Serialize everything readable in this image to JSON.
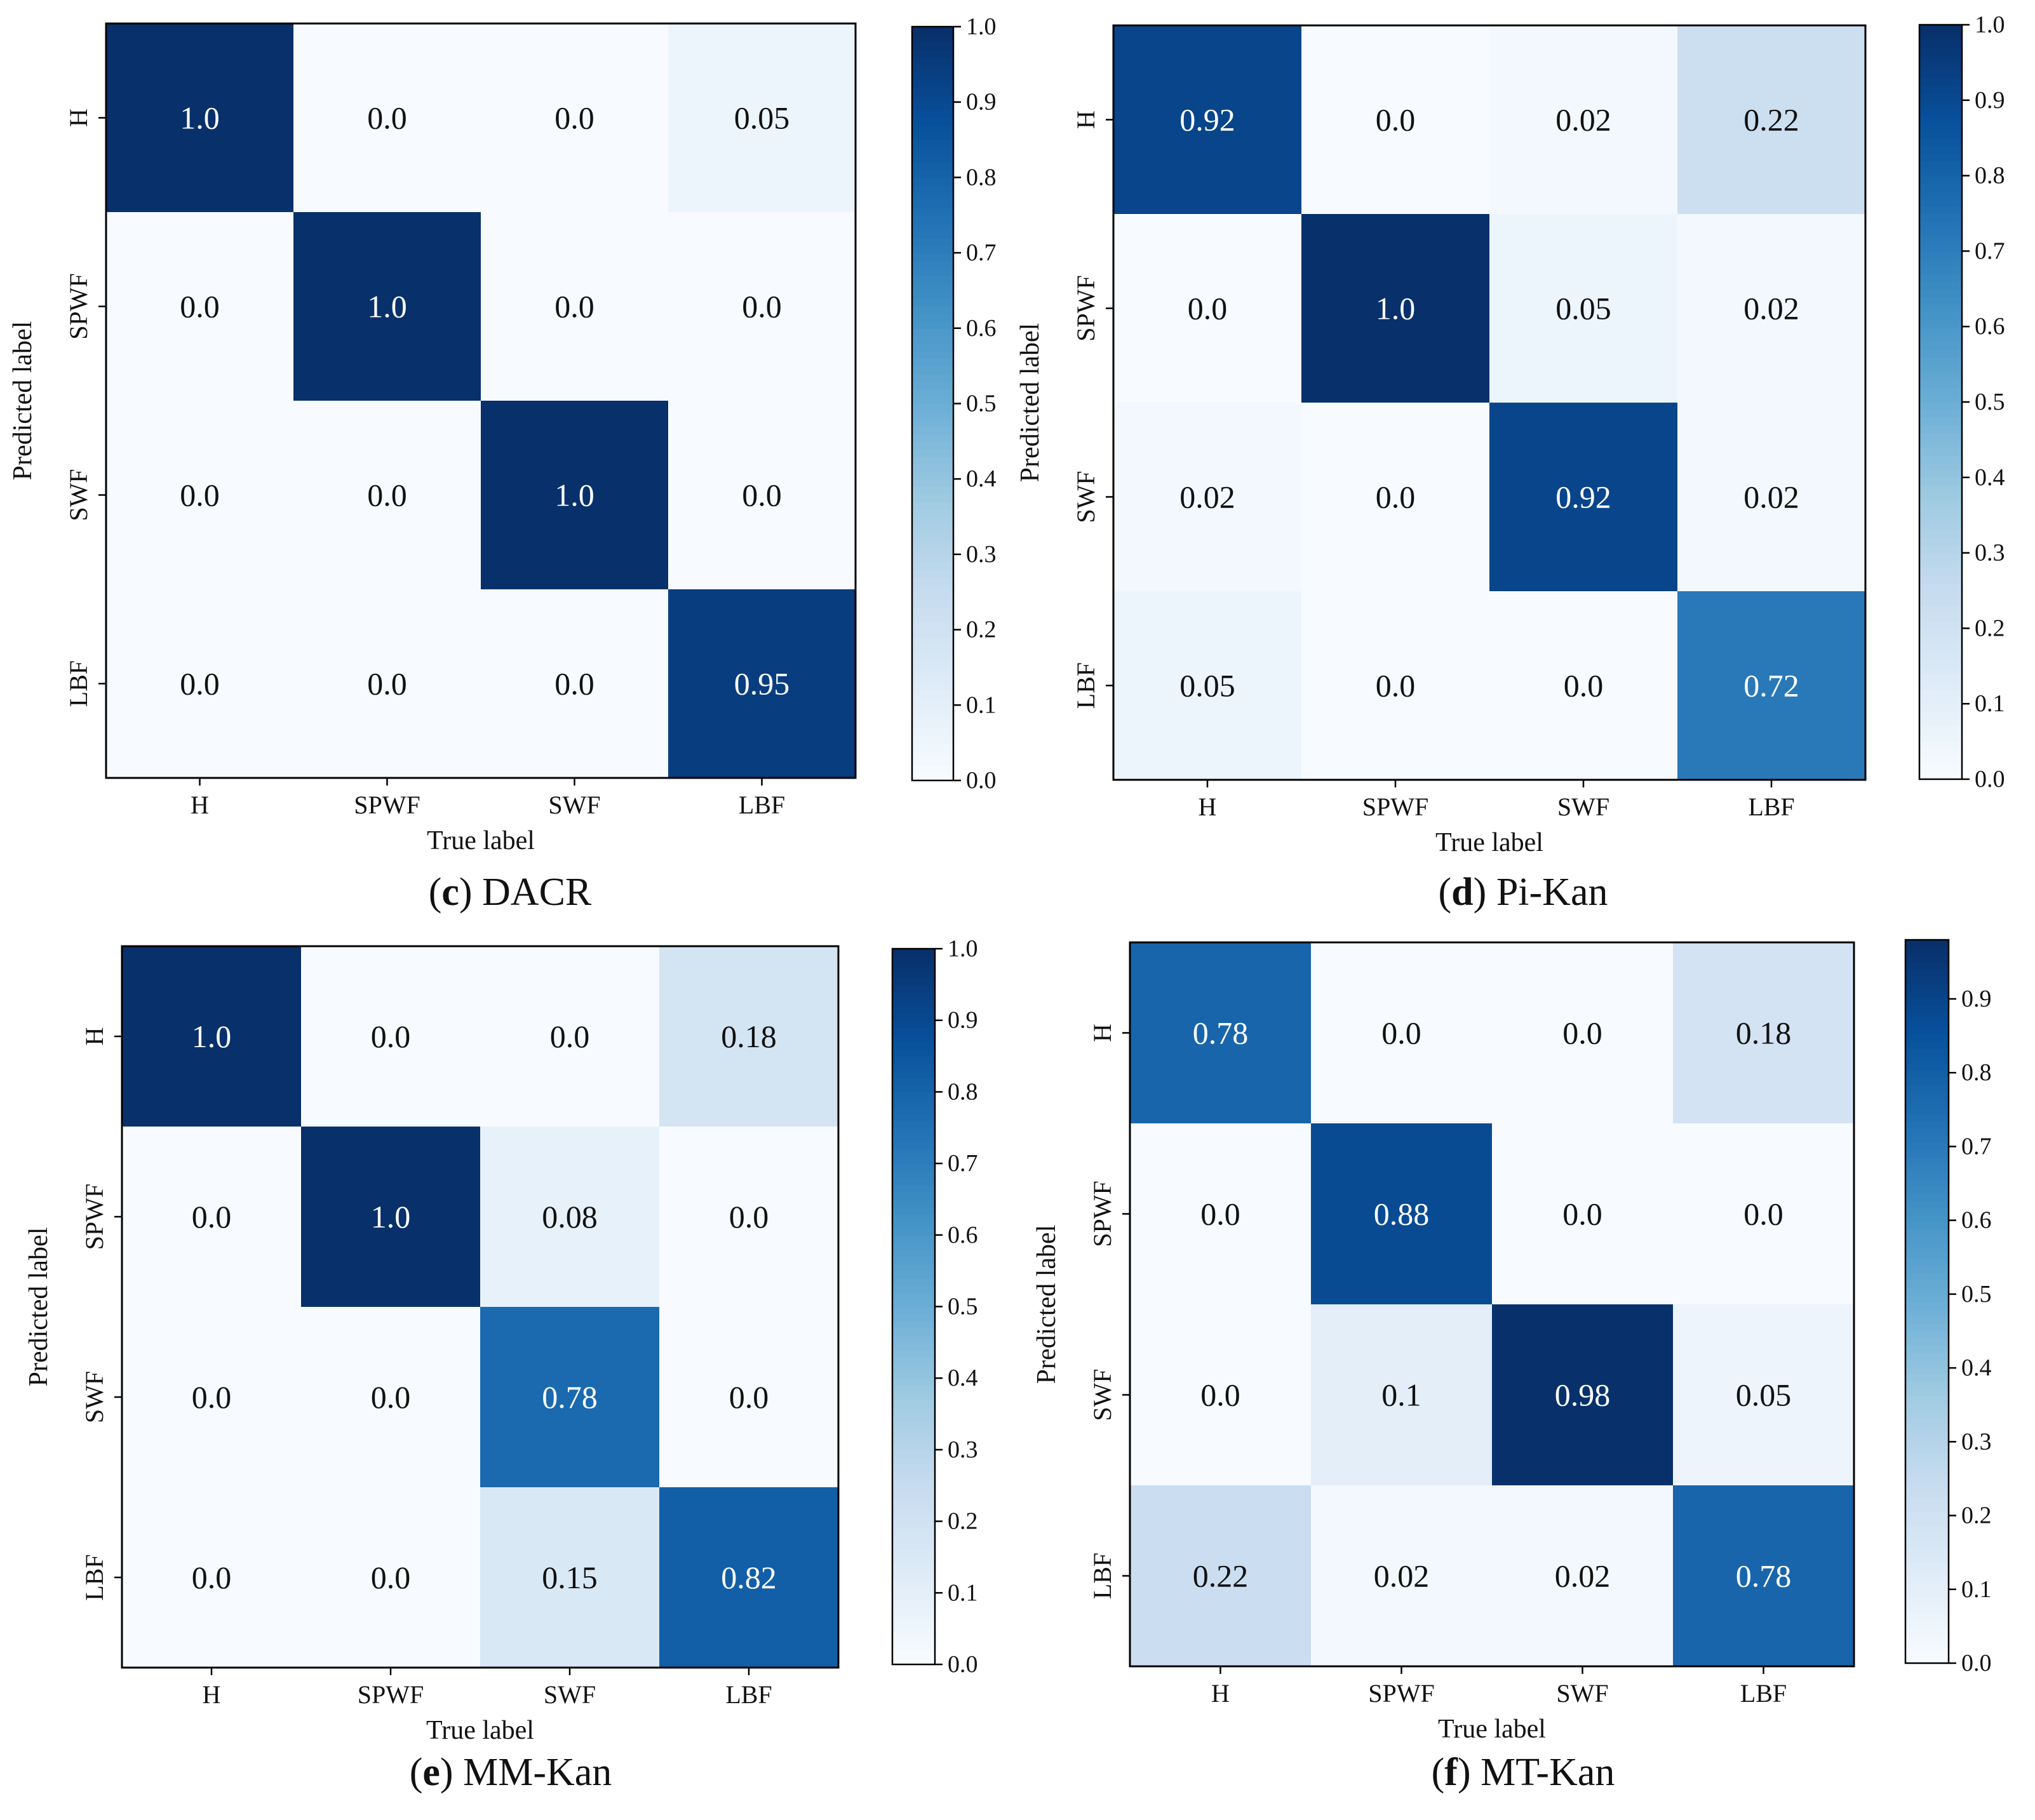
{
  "chart_data": [
    {
      "type": "heatmap",
      "caption": {
        "letter": "c",
        "title": "DACR"
      },
      "xlabel": "True label",
      "ylabel": "Predicted label",
      "rows": [
        "H",
        "SPWF",
        "SWF",
        "LBF"
      ],
      "cols": [
        "H",
        "SPWF",
        "SWF",
        "LBF"
      ],
      "values": [
        [
          1.0,
          0.0,
          0.0,
          0.05
        ],
        [
          0.0,
          1.0,
          0.0,
          0.0
        ],
        [
          0.0,
          0.0,
          1.0,
          0.0
        ],
        [
          0.0,
          0.0,
          0.0,
          0.95
        ]
      ],
      "cell_labels": [
        [
          "1.0",
          "0.0",
          "0.0",
          "0.05"
        ],
        [
          "0.0",
          "1.0",
          "0.0",
          "0.0"
        ],
        [
          "0.0",
          "0.0",
          "1.0",
          "0.0"
        ],
        [
          "0.0",
          "0.0",
          "0.0",
          "0.95"
        ]
      ],
      "colorbar": {
        "range": [
          0.0,
          1.0
        ],
        "ticks": [
          "0.0",
          "0.1",
          "0.2",
          "0.3",
          "0.4",
          "0.5",
          "0.6",
          "0.7",
          "0.8",
          "0.9",
          "1.0"
        ]
      }
    },
    {
      "type": "heatmap",
      "caption": {
        "letter": "d",
        "title": "Pi-Kan"
      },
      "xlabel": "True label",
      "ylabel": "Predicted label",
      "rows": [
        "H",
        "SPWF",
        "SWF",
        "LBF"
      ],
      "cols": [
        "H",
        "SPWF",
        "SWF",
        "LBF"
      ],
      "values": [
        [
          0.92,
          0.0,
          0.02,
          0.22
        ],
        [
          0.0,
          1.0,
          0.05,
          0.02
        ],
        [
          0.02,
          0.0,
          0.92,
          0.02
        ],
        [
          0.05,
          0.0,
          0.0,
          0.72
        ]
      ],
      "cell_labels": [
        [
          "0.92",
          "0.0",
          "0.02",
          "0.22"
        ],
        [
          "0.0",
          "1.0",
          "0.05",
          "0.02"
        ],
        [
          "0.02",
          "0.0",
          "0.92",
          "0.02"
        ],
        [
          "0.05",
          "0.0",
          "0.0",
          "0.72"
        ]
      ],
      "colorbar": {
        "range": [
          0.0,
          1.0
        ],
        "ticks": [
          "0.0",
          "0.1",
          "0.2",
          "0.3",
          "0.4",
          "0.5",
          "0.6",
          "0.7",
          "0.8",
          "0.9",
          "1.0"
        ]
      }
    },
    {
      "type": "heatmap",
      "caption": {
        "letter": "e",
        "title": "MM-Kan"
      },
      "xlabel": "True label",
      "ylabel": "Predicted label",
      "rows": [
        "H",
        "SPWF",
        "SWF",
        "LBF"
      ],
      "cols": [
        "H",
        "SPWF",
        "SWF",
        "LBF"
      ],
      "values": [
        [
          1.0,
          0.0,
          0.0,
          0.18
        ],
        [
          0.0,
          1.0,
          0.08,
          0.0
        ],
        [
          0.0,
          0.0,
          0.78,
          0.0
        ],
        [
          0.0,
          0.0,
          0.15,
          0.82
        ]
      ],
      "cell_labels": [
        [
          "1.0",
          "0.0",
          "0.0",
          "0.18"
        ],
        [
          "0.0",
          "1.0",
          "0.08",
          "0.0"
        ],
        [
          "0.0",
          "0.0",
          "0.78",
          "0.0"
        ],
        [
          "0.0",
          "0.0",
          "0.15",
          "0.82"
        ]
      ],
      "colorbar": {
        "range": [
          0.0,
          1.0
        ],
        "ticks": [
          "0.0",
          "0.1",
          "0.2",
          "0.3",
          "0.4",
          "0.5",
          "0.6",
          "0.7",
          "0.8",
          "0.9",
          "1.0"
        ]
      }
    },
    {
      "type": "heatmap",
      "caption": {
        "letter": "f",
        "title": "MT-Kan"
      },
      "xlabel": "True label",
      "ylabel": "Predicted label",
      "rows": [
        "H",
        "SPWF",
        "SWF",
        "LBF"
      ],
      "cols": [
        "H",
        "SPWF",
        "SWF",
        "LBF"
      ],
      "values": [
        [
          0.78,
          0.0,
          0.0,
          0.18
        ],
        [
          0.0,
          0.88,
          0.0,
          0.0
        ],
        [
          0.0,
          0.1,
          0.98,
          0.05
        ],
        [
          0.22,
          0.02,
          0.02,
          0.78
        ]
      ],
      "cell_labels": [
        [
          "0.78",
          "0.0",
          "0.0",
          "0.18"
        ],
        [
          "0.0",
          "0.88",
          "0.0",
          "0.0"
        ],
        [
          "0.0",
          "0.1",
          "0.98",
          "0.05"
        ],
        [
          "0.22",
          "0.02",
          "0.02",
          "0.78"
        ]
      ],
      "colorbar": {
        "range": [
          0.0,
          0.98
        ],
        "ticks": [
          "0.0",
          "0.1",
          "0.2",
          "0.3",
          "0.4",
          "0.5",
          "0.6",
          "0.7",
          "0.8",
          "0.9"
        ]
      }
    }
  ],
  "colormap": "Blues",
  "colors": {
    "low": "#f7fbff",
    "high": "#08306b",
    "text_dark": "#111111",
    "text_light": "#ffffff"
  }
}
